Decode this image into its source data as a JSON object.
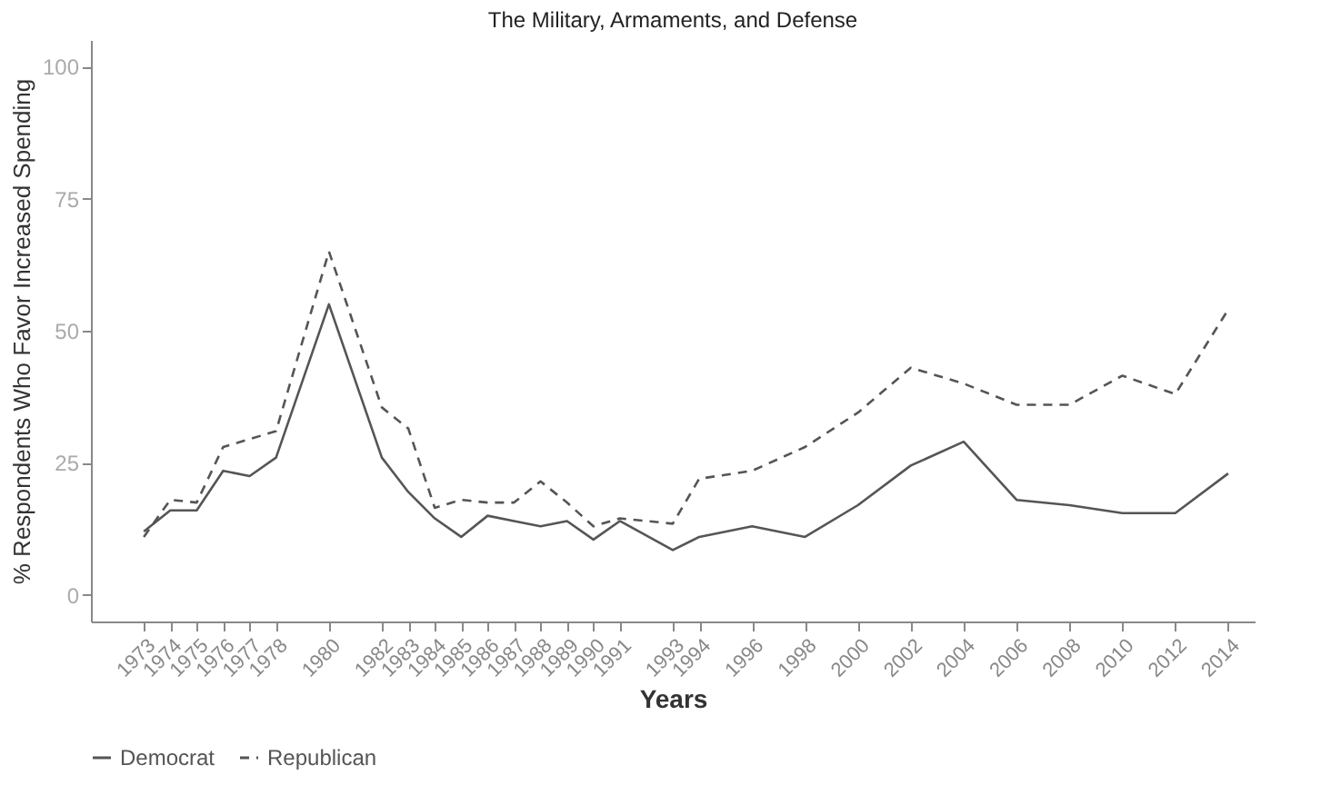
{
  "chart_data": {
    "type": "line",
    "title": "The Military, Armaments, and Defense",
    "xlabel": "Years",
    "ylabel": "% Respondents Who Favor Increased Spending",
    "x": [
      1973,
      1974,
      1975,
      1976,
      1977,
      1978,
      1980,
      1982,
      1983,
      1984,
      1985,
      1986,
      1987,
      1988,
      1989,
      1990,
      1991,
      1993,
      1994,
      1996,
      1998,
      2000,
      2002,
      2004,
      2006,
      2008,
      2010,
      2012,
      2014
    ],
    "series": [
      {
        "name": "Democrat",
        "color": "#555555",
        "line_style": "solid",
        "values": [
          12,
          16,
          16,
          23.5,
          22.5,
          26,
          55,
          26,
          19.5,
          14.5,
          11,
          15,
          14,
          13,
          14,
          10.5,
          14,
          8.5,
          11,
          13,
          11,
          17,
          24.5,
          29,
          18,
          17,
          15.5,
          15.5,
          23
        ]
      },
      {
        "name": "Republican",
        "color": "#555555",
        "line_style": "dashed",
        "values": [
          11,
          18,
          17.5,
          28,
          29.5,
          31,
          65,
          35.5,
          31.5,
          16.5,
          18,
          17.5,
          17.5,
          21.5,
          17.5,
          13,
          14.5,
          13.5,
          22,
          23.5,
          28,
          34.5,
          43,
          40,
          36,
          36,
          41.5,
          38,
          54
        ]
      }
    ],
    "xlim": [
      1971,
      2015
    ],
    "xticks": [
      1973,
      1974,
      1975,
      1976,
      1977,
      1978,
      1980,
      1982,
      1983,
      1984,
      1985,
      1986,
      1987,
      1988,
      1989,
      1990,
      1991,
      1993,
      1994,
      1996,
      1998,
      2000,
      2002,
      2004,
      2006,
      2008,
      2010,
      2012,
      2014
    ],
    "ylim": [
      -5,
      105
    ],
    "yticks": [
      0,
      25,
      50,
      75,
      100
    ],
    "grid": false,
    "legend": "bottom",
    "marker": "none"
  }
}
